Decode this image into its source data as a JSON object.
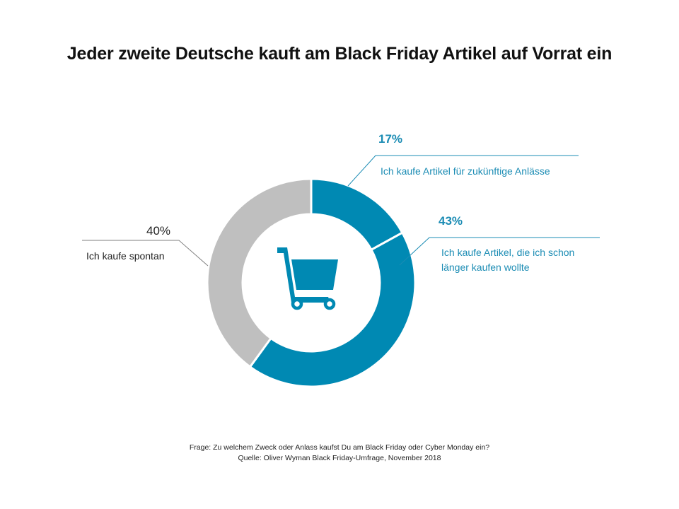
{
  "title": "Jeder zweite Deutsche kauft am Black Friday Artikel auf Vorrat ein",
  "colors": {
    "accent": "#0089b3",
    "neutral": "#bfbfbf",
    "label_accent": "#1b8cb4"
  },
  "center_icon": "shopping-cart-icon",
  "chart_data": {
    "type": "pie",
    "donut": true,
    "title": "Jeder zweite Deutsche kauft am Black Friday Artikel auf Vorrat ein",
    "slices": [
      {
        "label": "Ich kaufe Artikel für zukünftige Anlässe",
        "value": 17,
        "display": "17%",
        "color": "#0089b3"
      },
      {
        "label": "Ich kaufe Artikel, die ich schon länger kaufen wollte",
        "value": 43,
        "display": "43%",
        "color": "#0089b3"
      },
      {
        "label": "Ich kaufe spontan",
        "value": 40,
        "display": "40%",
        "color": "#bfbfbf"
      }
    ]
  },
  "labels": {
    "s1_line1": "Ich kaufe Artikel für zukünftige Anlässe",
    "s2_line1": "Ich kaufe Artikel, die ich schon",
    "s2_line2": "länger kaufen wollte",
    "s3_line1": "Ich kaufe spontan"
  },
  "footer": {
    "question": "Frage: Zu welchem Zweck oder Anlass kaufst Du am Black Friday oder Cyber Monday ein?",
    "source": "Quelle: Oliver Wyman Black Friday-Umfrage, November 2018"
  }
}
